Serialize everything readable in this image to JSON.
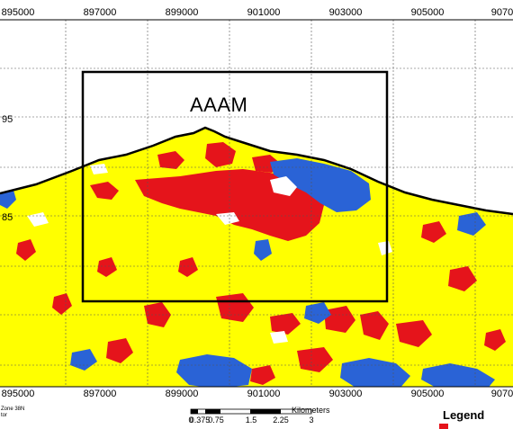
{
  "map": {
    "title": "AAAM",
    "x_labels": [
      "895000",
      "897000",
      "899000",
      "901000",
      "903000",
      "905000",
      "9070"
    ],
    "x_labels_bottom": [
      "895000",
      "897000",
      "899000",
      "901000",
      "903000",
      "905000",
      "9070"
    ],
    "y_labels": [
      "95",
      "85"
    ],
    "zone_text": "Zone 38N",
    "zone_text2": "tor",
    "colors": {
      "land": "#ffff00",
      "high": "#e5141b",
      "water": "#2a63d6",
      "bare": "#ffffff"
    }
  },
  "scale_bar": {
    "unit": "Kilometers",
    "labels": [
      "0",
      "0.375",
      "0.75",
      "1.5",
      "2.25",
      "3"
    ]
  },
  "legend": {
    "title": "Legend"
  }
}
